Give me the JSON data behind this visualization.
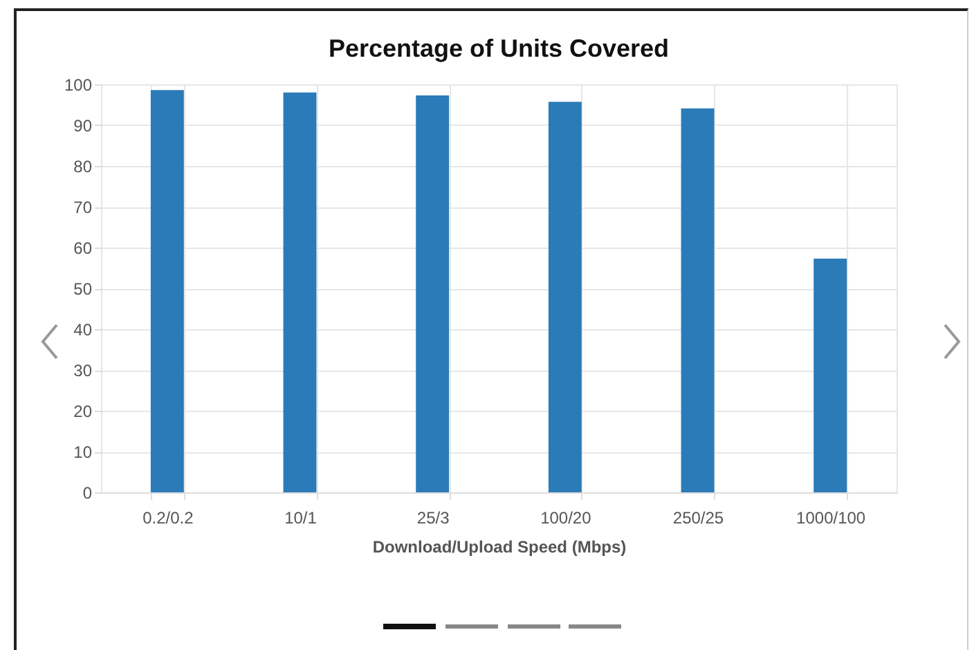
{
  "chart_data": {
    "type": "bar",
    "title": "Percentage of Units Covered",
    "xlabel": "Download/Upload Speed (Mbps)",
    "categories": [
      "0.2/0.2",
      "10/1",
      "25/3",
      "100/20",
      "250/25",
      "1000/100"
    ],
    "values": [
      98.6,
      98,
      97.3,
      95.7,
      94.1,
      57.3
    ],
    "color": "#2b7bb9",
    "ylim": [
      0,
      100
    ],
    "yticks": [
      0,
      10,
      20,
      30,
      40,
      50,
      60,
      70,
      80,
      90,
      100
    ],
    "grid": true
  }
}
